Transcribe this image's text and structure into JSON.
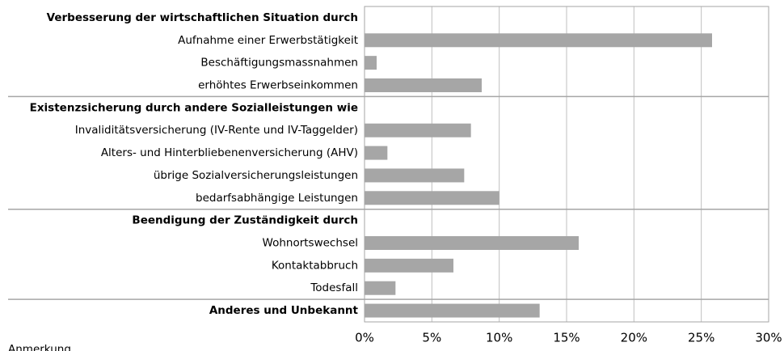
{
  "chart_data": {
    "type": "bar",
    "orientation": "horizontal",
    "categories": [
      "Verbesserung der wirtschaftlichen Situation durch",
      "Aufnahme einer Erwerbstätigkeit",
      "Beschäftigungsmassnahmen",
      "erhöhtes Erwerbseinkommen",
      "Existenzsicherung durch andere Sozialleistungen wie",
      "Invaliditätsversicherung (IV-Rente und IV-Taggelder)",
      "Alters- und Hinterbliebenenversicherung (AHV)",
      "übrige Sozialversicherungsleistungen",
      "bedarfsabhängige Leistungen",
      "Beendigung der Zuständigkeit durch",
      "Wohnortswechsel",
      "Kontaktabbruch",
      "Todesfall",
      "Anderes und Unbekannt"
    ],
    "category_bold": [
      true,
      false,
      false,
      false,
      true,
      false,
      false,
      false,
      false,
      true,
      false,
      false,
      false,
      true
    ],
    "values": [
      null,
      25.8,
      0.9,
      8.7,
      null,
      7.9,
      1.7,
      7.4,
      10.0,
      null,
      15.9,
      6.6,
      2.3,
      13.0
    ],
    "color": "#a6a6a6",
    "xlim": [
      0,
      30
    ],
    "xticks": [
      {
        "value": 0,
        "label": "0%"
      },
      {
        "value": 5,
        "label": "5%"
      },
      {
        "value": 10,
        "label": "10%"
      },
      {
        "value": 15,
        "label": "15%"
      },
      {
        "value": 20,
        "label": "20%"
      },
      {
        "value": 25,
        "label": "25%"
      },
      {
        "value": 30,
        "label": "30%"
      }
    ],
    "grid": true,
    "note": "Anmerkung"
  }
}
